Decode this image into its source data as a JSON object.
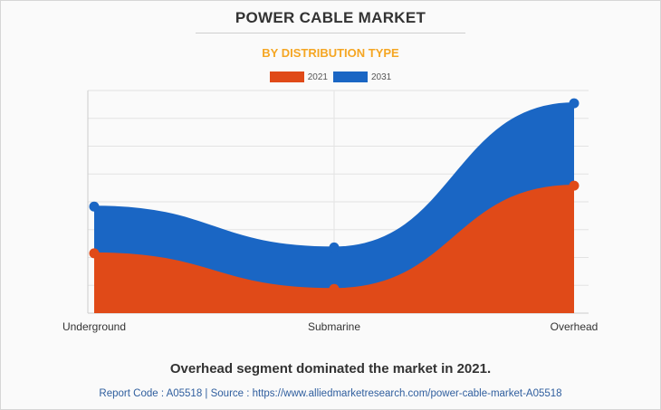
{
  "chart_data": {
    "type": "area",
    "title": "POWER CABLE MARKET",
    "subtitle": "BY DISTRIBUTION TYPE",
    "categories": [
      "Underground",
      "Submarine",
      "Overhead"
    ],
    "series": [
      {
        "name": "2021",
        "values": [
          21.5,
          8.7,
          45.8
        ],
        "color": "#e04a18"
      },
      {
        "name": "2031",
        "values": [
          38.3,
          23.6,
          75.4
        ],
        "color": "#1a66c4"
      }
    ],
    "ylim": [
      0,
      80
    ],
    "grid": true,
    "legend": "top-center",
    "xlabel": "",
    "ylabel": ""
  },
  "colors": {
    "subtitle": "#f5a623",
    "axis": "#cccccc",
    "grid": "#e3e3e3"
  },
  "caption": "Overhead segment dominated the market in 2021.",
  "source_line": "Report Code : A05518  |  Source : https://www.alliedmarketresearch.com/power-cable-market-A05518"
}
